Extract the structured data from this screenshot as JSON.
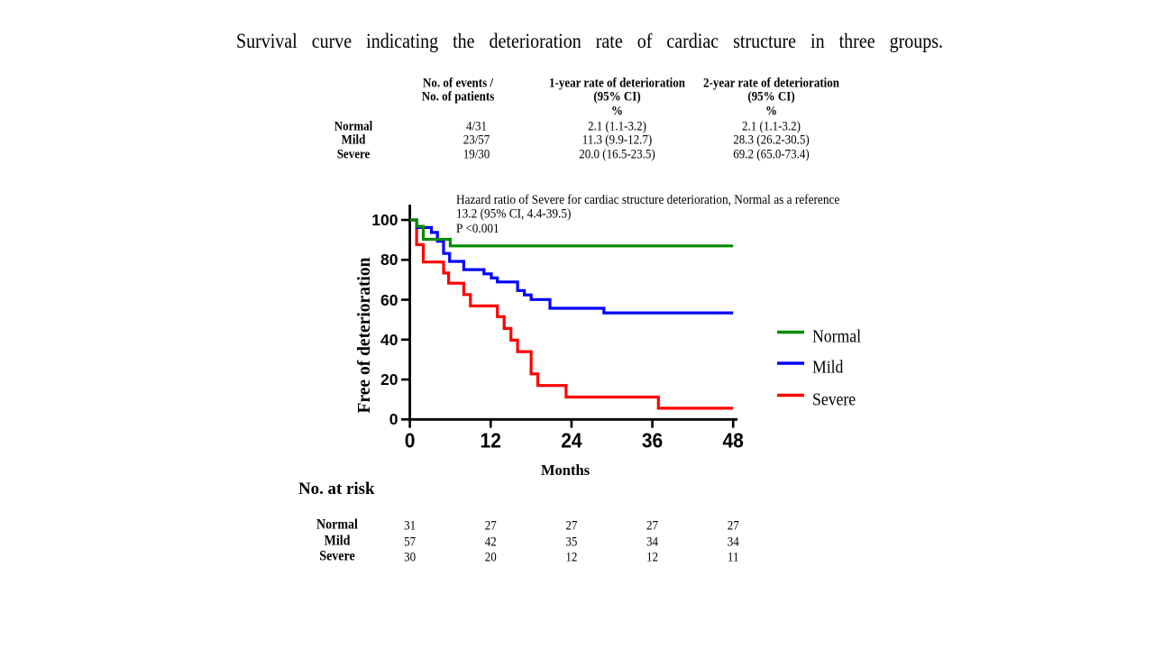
{
  "title": "Survival curve indicating the deterioration rate of cardiac structure in three groups.",
  "colors": {
    "normal": "#008C00",
    "mild": "#0000FF",
    "severe": "#FF0000",
    "axis": "#000000",
    "text": "#000000",
    "background": "#FFFFFF"
  },
  "stats_table": {
    "col_headers": [
      [
        "No. of events /",
        "No. of patients"
      ],
      [
        "1-year rate of deterioration",
        "(95% CI)",
        "%"
      ],
      [
        "2-year rate of deterioration",
        "(95% CI)",
        "%"
      ]
    ],
    "rows": [
      {
        "label": "Normal",
        "events": "4/31",
        "rate1": "2.1  (1.1-3.2)",
        "rate2": "2.1  (1.1-3.2)"
      },
      {
        "label": "Mild",
        "events": "23/57",
        "rate1": "11.3  (9.9-12.7)",
        "rate2": "28.3  (26.2-30.5)"
      },
      {
        "label": "Severe",
        "events": "19/30",
        "rate1": "20.0  (16.5-23.5)",
        "rate2": "69.2  (65.0-73.4)"
      }
    ]
  },
  "annotation": {
    "lines": [
      "Hazard ratio of Severe for cardiac structure deterioration, Normal  as a reference",
      "13.2  (95% CI, 4.4-39.5)",
      "P <0.001"
    ]
  },
  "chart_data": {
    "type": "line",
    "subtype": "kaplan-meier-step",
    "title": "",
    "xlabel": "Months",
    "ylabel": "Free of deterioration",
    "xlim": [
      0,
      48
    ],
    "ylim": [
      0,
      110
    ],
    "xticks": [
      0,
      12,
      24,
      36,
      48
    ],
    "yticks": [
      0,
      20,
      40,
      60,
      80,
      100
    ],
    "grid": false,
    "legend_position": "right",
    "series": [
      {
        "name": "Normal",
        "color": "#008C00",
        "points": [
          [
            0,
            100
          ],
          [
            1,
            96.8
          ],
          [
            2,
            90.3
          ],
          [
            6,
            87.0
          ],
          [
            48,
            87.0
          ]
        ]
      },
      {
        "name": "Mild",
        "color": "#0000FF",
        "points": [
          [
            0,
            100
          ],
          [
            1,
            96.2
          ],
          [
            3.2,
            93.7
          ],
          [
            4.1,
            89.3
          ],
          [
            5,
            83.2
          ],
          [
            5.9,
            79.2
          ],
          [
            8,
            75.1
          ],
          [
            11,
            73.0
          ],
          [
            12.1,
            70.9
          ],
          [
            13,
            68.9
          ],
          [
            16,
            64.6
          ],
          [
            17,
            62.4
          ],
          [
            18,
            60.1
          ],
          [
            20.8,
            55.7
          ],
          [
            28.8,
            53.4
          ],
          [
            48,
            53.4
          ]
        ]
      },
      {
        "name": "Severe",
        "color": "#FF0000",
        "points": [
          [
            0,
            100
          ],
          [
            1,
            87.6
          ],
          [
            2,
            78.9
          ],
          [
            5,
            73.4
          ],
          [
            5.75,
            68.3
          ],
          [
            8,
            62.6
          ],
          [
            9,
            56.9
          ],
          [
            13,
            51.5
          ],
          [
            14,
            45.6
          ],
          [
            15,
            39.7
          ],
          [
            16,
            34.0
          ],
          [
            18,
            22.8
          ],
          [
            19,
            17.0
          ],
          [
            23.2,
            11.2
          ],
          [
            36.9,
            5.6
          ],
          [
            48,
            5.6
          ]
        ]
      }
    ]
  },
  "risk_table": {
    "title": "No. at risk",
    "timepoints": [
      0,
      12,
      24,
      36,
      48
    ],
    "rows": [
      {
        "label": "Normal",
        "values": [
          "31",
          "27",
          "27",
          "27",
          "27"
        ]
      },
      {
        "label": "Mild",
        "values": [
          "57",
          "42",
          "35",
          "34",
          "34"
        ]
      },
      {
        "label": "Severe",
        "values": [
          "30",
          "20",
          "12",
          "12",
          "11"
        ]
      }
    ]
  }
}
